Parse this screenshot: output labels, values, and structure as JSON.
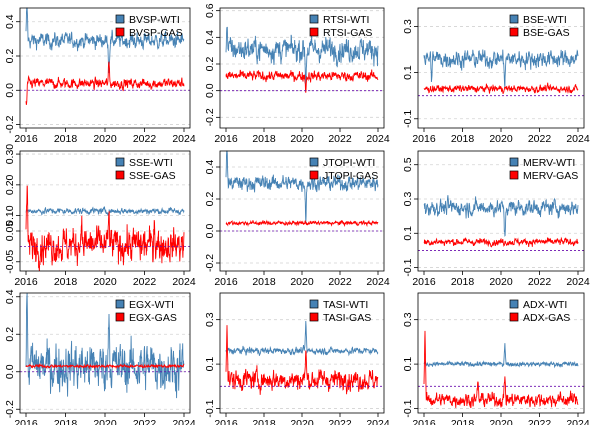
{
  "chart_data": [
    {
      "type": "line",
      "x_range": [
        2016,
        2024
      ],
      "x_ticks": [
        "2016",
        "2018",
        "2020",
        "2022",
        "2024"
      ],
      "ylim": [
        -0.22,
        0.48
      ],
      "y_ticks": [
        {
          "v": -0.2,
          "l": "-0.2"
        },
        {
          "v": 0,
          "l": "0.0"
        },
        {
          "v": 0.2,
          "l": "0.2"
        },
        {
          "v": 0.4,
          "l": "0.4"
        }
      ],
      "series": [
        {
          "name": "BVSP-WTI",
          "color": "#4682b4",
          "level": 0.29,
          "noise": 0.018,
          "shocks": [
            {
              "t": 2020.2,
              "v": -0.17
            },
            {
              "t": 2016.05,
              "v": 0.22
            }
          ]
        },
        {
          "name": "BVSP-GAS",
          "color": "#ff0000",
          "level": 0.04,
          "noise": 0.012,
          "shocks": [
            {
              "t": 2016.02,
              "v": -0.15
            },
            {
              "t": 2020.2,
              "v": 0.12
            }
          ]
        }
      ]
    },
    {
      "type": "line",
      "x_range": [
        2016,
        2024
      ],
      "x_ticks": [
        "2016",
        "2018",
        "2020",
        "2022",
        "2024"
      ],
      "ylim": [
        -0.28,
        0.62
      ],
      "y_ticks": [
        {
          "v": -0.2,
          "l": "-0.2"
        },
        {
          "v": 0,
          "l": "0.0"
        },
        {
          "v": 0.2,
          "l": "0.2"
        },
        {
          "v": 0.4,
          "l": "0.4"
        },
        {
          "v": 0.6,
          "l": "0.6"
        }
      ],
      "series": [
        {
          "name": "RTSI-WTI",
          "color": "#4682b4",
          "level": 0.31,
          "noise": 0.035,
          "shocks": [
            {
              "t": 2020.2,
              "v": -0.25
            },
            {
              "t": 2016.05,
              "v": 0.2
            }
          ]
        },
        {
          "name": "RTSI-GAS",
          "color": "#ff0000",
          "level": 0.11,
          "noise": 0.015,
          "shocks": [
            {
              "t": 2020.2,
              "v": -0.1
            }
          ]
        }
      ]
    },
    {
      "type": "line",
      "x_range": [
        2016,
        2024
      ],
      "x_ticks": [
        "2016",
        "2018",
        "2020",
        "2022",
        "2024"
      ],
      "ylim": [
        -0.14,
        0.38
      ],
      "y_ticks": [
        {
          "v": -0.1,
          "l": "-0.1"
        },
        {
          "v": 0.1,
          "l": "0.1"
        },
        {
          "v": 0.3,
          "l": "0.3"
        }
      ],
      "series": [
        {
          "name": "BSE-WTI",
          "color": "#4682b4",
          "level": 0.16,
          "noise": 0.015,
          "shocks": [
            {
              "t": 2020.2,
              "v": -0.12
            },
            {
              "t": 2016.4,
              "v": -0.08
            }
          ]
        },
        {
          "name": "BSE-GAS",
          "color": "#ff0000",
          "level": 0.03,
          "noise": 0.006,
          "shocks": []
        }
      ]
    },
    {
      "type": "line",
      "x_range": [
        2016,
        2024
      ],
      "x_ticks": [
        "2016",
        "2018",
        "2020",
        "2022",
        "2024"
      ],
      "ylim": [
        -0.08,
        0.31
      ],
      "y_ticks": [
        {
          "v": -0.05,
          "l": "-0.05"
        },
        {
          "v": 0.05,
          "l": "0.05"
        },
        {
          "v": 0.1,
          "l": "0.10"
        },
        {
          "v": 0.2,
          "l": "0.20"
        },
        {
          "v": 0.3,
          "l": "0.30"
        }
      ],
      "series": [
        {
          "name": "SSE-WTI",
          "color": "#4682b4",
          "level": 0.115,
          "noise": 0.004,
          "shocks": []
        },
        {
          "name": "SSE-GAS",
          "color": "#ff0000",
          "level": 0.005,
          "noise": 0.022,
          "shocks": [
            {
              "t": 2016.05,
              "v": 0.2
            },
            {
              "t": 2018.8,
              "v": 0.1
            },
            {
              "t": 2020.2,
              "v": 0.11
            },
            {
              "t": 2022.5,
              "v": 0.1
            }
          ]
        }
      ]
    },
    {
      "type": "line",
      "x_range": [
        2016,
        2024
      ],
      "x_ticks": [
        "2016",
        "2018",
        "2020",
        "2022",
        "2024"
      ],
      "ylim": [
        -0.25,
        0.5
      ],
      "y_ticks": [
        {
          "v": -0.2,
          "l": "-0.2"
        },
        {
          "v": 0,
          "l": "0.0"
        },
        {
          "v": 0.2,
          "l": "0.2"
        },
        {
          "v": 0.4,
          "l": "0.4"
        }
      ],
      "series": [
        {
          "name": "JTOPI-WTI",
          "color": "#4682b4",
          "level": 0.3,
          "noise": 0.018,
          "shocks": [
            {
              "t": 2020.2,
              "v": -0.22
            },
            {
              "t": 2016.05,
              "v": 0.25
            }
          ]
        },
        {
          "name": "JTOPI-GAS",
          "color": "#ff0000",
          "level": 0.05,
          "noise": 0.005,
          "shocks": []
        }
      ]
    },
    {
      "type": "line",
      "x_range": [
        2016,
        2024
      ],
      "x_ticks": [
        "2016",
        "2018",
        "2020",
        "2022",
        "2024"
      ],
      "ylim": [
        -0.12,
        0.58
      ],
      "y_ticks": [
        {
          "v": -0.1,
          "l": "-0.1"
        },
        {
          "v": 0.1,
          "l": "0.1"
        },
        {
          "v": 0.3,
          "l": "0.3"
        },
        {
          "v": 0.5,
          "l": "0.5"
        }
      ],
      "series": [
        {
          "name": "MERV-WTI",
          "color": "#4682b4",
          "level": 0.25,
          "noise": 0.018,
          "shocks": [
            {
              "t": 2020.2,
              "v": -0.2
            }
          ]
        },
        {
          "name": "MERV-GAS",
          "color": "#ff0000",
          "level": 0.05,
          "noise": 0.008,
          "shocks": []
        }
      ]
    },
    {
      "type": "line",
      "x_range": [
        2016,
        2024
      ],
      "x_ticks": [
        "2016",
        "2018",
        "2020",
        "2022",
        "2024"
      ],
      "ylim": [
        -0.22,
        0.42
      ],
      "y_ticks": [
        {
          "v": -0.2,
          "l": "-0.2"
        },
        {
          "v": 0,
          "l": "0.0"
        },
        {
          "v": 0.2,
          "l": "0.2"
        },
        {
          "v": 0.4,
          "l": "0.4"
        }
      ],
      "series": [
        {
          "name": "EGX-WTI",
          "color": "#4682b4",
          "level": 0.03,
          "noise": 0.05,
          "shocks": [
            {
              "t": 2016.05,
              "v": 0.38
            },
            {
              "t": 2020.2,
              "v": 0.38
            }
          ]
        },
        {
          "name": "EGX-GAS",
          "color": "#ff0000",
          "level": 0.03,
          "noise": 0.003,
          "shocks": []
        }
      ]
    },
    {
      "type": "line",
      "x_range": [
        2016,
        2024
      ],
      "x_ticks": [
        "2016",
        "2018",
        "2020",
        "2022",
        "2024"
      ],
      "ylim": [
        -0.12,
        0.42
      ],
      "y_ticks": [
        {
          "v": -0.1,
          "l": "-0.1"
        },
        {
          "v": 0.1,
          "l": "0.1"
        },
        {
          "v": 0.3,
          "l": "0.3"
        }
      ],
      "series": [
        {
          "name": "TASI-WTI",
          "color": "#4682b4",
          "level": 0.16,
          "noise": 0.006,
          "shocks": [
            {
              "t": 2020.2,
              "v": 0.12
            }
          ]
        },
        {
          "name": "TASI-GAS",
          "color": "#ff0000",
          "level": 0.03,
          "noise": 0.018,
          "shocks": [
            {
              "t": 2016.05,
              "v": 0.28
            },
            {
              "t": 2020.2,
              "v": 0.15
            },
            {
              "t": 2022.3,
              "v": 0.06
            }
          ]
        }
      ]
    },
    {
      "type": "line",
      "x_range": [
        2016,
        2024
      ],
      "x_ticks": [
        "2016",
        "2018",
        "2020",
        "2022",
        "2024"
      ],
      "ylim": [
        -0.12,
        0.42
      ],
      "y_ticks": [
        {
          "v": -0.1,
          "l": "-0.1"
        },
        {
          "v": 0.1,
          "l": "0.1"
        },
        {
          "v": 0.3,
          "l": "0.3"
        }
      ],
      "series": [
        {
          "name": "ADX-WTI",
          "color": "#4682b4",
          "level": 0.1,
          "noise": 0.004,
          "shocks": [
            {
              "t": 2020.2,
              "v": 0.1
            }
          ]
        },
        {
          "name": "ADX-GAS",
          "color": "#ff0000",
          "level": -0.06,
          "noise": 0.012,
          "shocks": [
            {
              "t": 2016.05,
              "v": 0.33
            },
            {
              "t": 2018.8,
              "v": 0.08
            },
            {
              "t": 2020.2,
              "v": 0.12
            }
          ]
        }
      ]
    }
  ]
}
